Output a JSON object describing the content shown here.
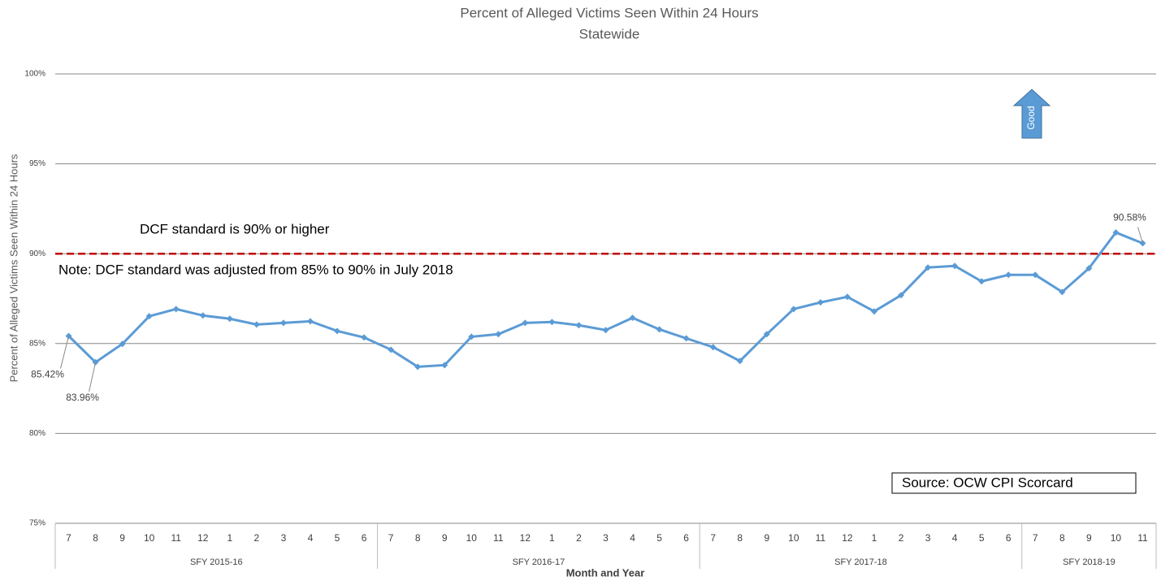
{
  "chart_data": {
    "type": "line",
    "title": "Percent of Alleged Victims Seen Within 24 Hours",
    "subtitle": "Statewide",
    "y_axis_label": "Percent of Alleged Victims Seen Within 24 Hours",
    "x_axis_label": "Month and Year",
    "categories": [
      "7",
      "8",
      "9",
      "10",
      "11",
      "12",
      "1",
      "2",
      "3",
      "4",
      "5",
      "6",
      "7",
      "8",
      "9",
      "10",
      "11",
      "12",
      "1",
      "2",
      "3",
      "4",
      "5",
      "6",
      "7",
      "8",
      "9",
      "10",
      "11",
      "12",
      "1",
      "2",
      "3",
      "4",
      "5",
      "6",
      "7",
      "8",
      "9",
      "10",
      "11"
    ],
    "groups": [
      {
        "label": "SFY 2015-16",
        "span": 12
      },
      {
        "label": "SFY 2016-17",
        "span": 12
      },
      {
        "label": "SFY 2017-18",
        "span": 12
      },
      {
        "label": "SFY 2018-19",
        "span": 5
      }
    ],
    "series": [
      {
        "name": "Statewide",
        "color": "#5b9bd5",
        "values": [
          85.42,
          83.96,
          84.98,
          86.52,
          86.92,
          86.56,
          86.38,
          86.06,
          86.15,
          86.24,
          85.7,
          85.34,
          84.66,
          83.71,
          83.8,
          85.38,
          85.52,
          86.15,
          86.2,
          86.02,
          85.75,
          86.43,
          85.79,
          85.29,
          84.8,
          84.03,
          85.52,
          86.92,
          87.29,
          87.6,
          86.79,
          87.69,
          89.23,
          89.32,
          88.46,
          88.82,
          88.82,
          87.87,
          89.19,
          91.18,
          90.58
        ],
        "value_labels": [
          "85.42%",
          "83.96%",
          null,
          null,
          null,
          null,
          null,
          null,
          null,
          null,
          null,
          null,
          null,
          null,
          null,
          null,
          null,
          null,
          null,
          null,
          null,
          null,
          null,
          null,
          null,
          null,
          null,
          null,
          null,
          null,
          null,
          null,
          null,
          null,
          null,
          null,
          null,
          null,
          null,
          null,
          "90.58%"
        ]
      }
    ],
    "ylim": [
      75,
      100
    ],
    "yticks": [
      {
        "value": 75,
        "label": "75%"
      },
      {
        "value": 80,
        "label": "80%"
      },
      {
        "value": 85,
        "label": "85%"
      },
      {
        "value": 90,
        "label": "90%"
      },
      {
        "value": 95,
        "label": "95%"
      },
      {
        "value": 100,
        "label": "100%"
      }
    ],
    "grid": true,
    "reference_line": {
      "value": 90,
      "color": "#c00000"
    },
    "annotations": [
      "DCF standard is 90% or higher",
      "Note: DCF standard was adjusted from 85% to 90% in July 2018",
      "Source: OCW CPI Scorcard",
      "Good"
    ]
  }
}
